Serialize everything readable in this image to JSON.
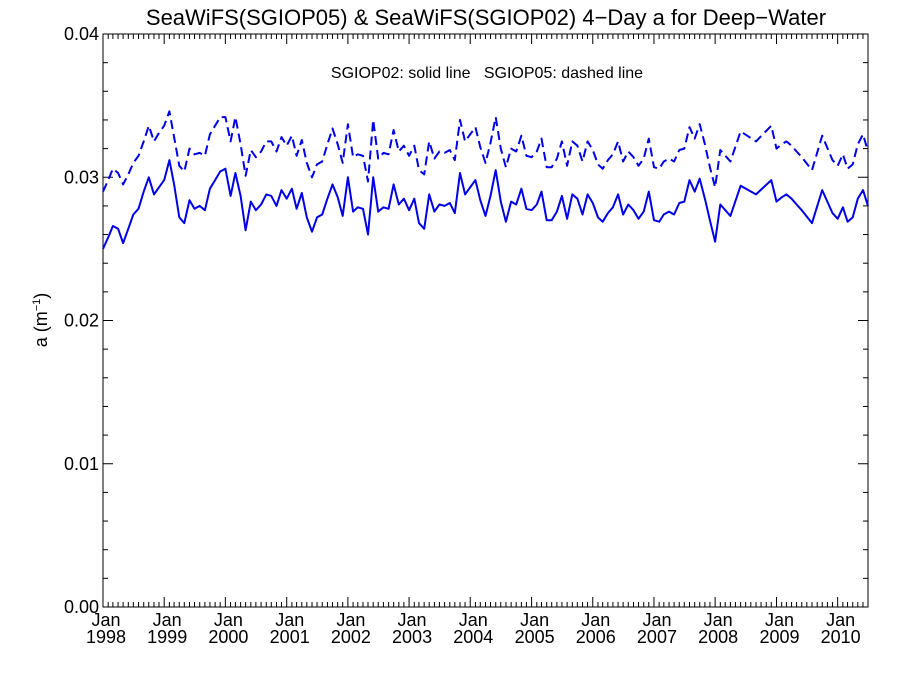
{
  "chart_data": {
    "type": "line",
    "title": "SeaWiFS(SGIOP05) & SeaWiFS(SGIOP02) 4−Day a for Deep−Water",
    "ylabel_main": "a (m",
    "ylabel_sup": "−1",
    "ylabel_tail": ")",
    "xlabel": "",
    "annotation": "SGIOP02: solid line   SGIOP05: dashed line",
    "ylim": [
      0.0,
      0.04
    ],
    "xlim": [
      "1998-01-01",
      "2010-07-01"
    ],
    "y_ticks": [
      {
        "value": 0.0,
        "label": "0.00"
      },
      {
        "value": 0.01,
        "label": "0.01"
      },
      {
        "value": 0.02,
        "label": "0.02"
      },
      {
        "value": 0.03,
        "label": "0.03"
      },
      {
        "value": 0.04,
        "label": "0.04"
      }
    ],
    "x_ticks": [
      {
        "date": "1998-01-01",
        "month": "Jan",
        "year": "1998"
      },
      {
        "date": "1999-01-01",
        "month": "Jan",
        "year": "1999"
      },
      {
        "date": "2000-01-01",
        "month": "Jan",
        "year": "2000"
      },
      {
        "date": "2001-01-01",
        "month": "Jan",
        "year": "2001"
      },
      {
        "date": "2002-01-01",
        "month": "Jan",
        "year": "2002"
      },
      {
        "date": "2003-01-01",
        "month": "Jan",
        "year": "2003"
      },
      {
        "date": "2004-01-01",
        "month": "Jan",
        "year": "2004"
      },
      {
        "date": "2005-01-01",
        "month": "Jan",
        "year": "2005"
      },
      {
        "date": "2006-01-01",
        "month": "Jan",
        "year": "2006"
      },
      {
        "date": "2007-01-01",
        "month": "Jan",
        "year": "2007"
      },
      {
        "date": "2008-01-01",
        "month": "Jan",
        "year": "2008"
      },
      {
        "date": "2009-01-01",
        "month": "Jan",
        "year": "2009"
      },
      {
        "date": "2010-01-01",
        "month": "Jan",
        "year": "2010"
      }
    ],
    "grid": false,
    "line_color": "#0000e6",
    "series": [
      {
        "style": "solid",
        "x": [
          "1998-01-01",
          "1998-02-01",
          "1998-03-01",
          "1998-04-01",
          "1998-05-01",
          "1998-06-01",
          "1998-07-01",
          "1998-08-01",
          "1998-09-01",
          "1998-10-01",
          "1998-11-01",
          "1998-12-01",
          "1999-01-01",
          "1999-02-01",
          "1999-03-01",
          "1999-04-01",
          "1999-05-01",
          "1999-06-01",
          "1999-07-01",
          "1999-08-01",
          "1999-09-01",
          "1999-10-01",
          "1999-11-01",
          "1999-12-01",
          "2000-01-01",
          "2000-02-01",
          "2000-03-01",
          "2000-04-01",
          "2000-05-01",
          "2000-06-01",
          "2000-07-01",
          "2000-08-01",
          "2000-09-01",
          "2000-10-01",
          "2000-11-01",
          "2000-12-01",
          "2001-01-01",
          "2001-02-01",
          "2001-03-01",
          "2001-04-01",
          "2001-05-01",
          "2001-06-01",
          "2001-07-01",
          "2001-08-01",
          "2001-09-01",
          "2001-10-01",
          "2001-11-01",
          "2001-12-01",
          "2002-01-01",
          "2002-02-01",
          "2002-03-01",
          "2002-04-01",
          "2002-05-01",
          "2002-06-01",
          "2002-07-01",
          "2002-08-01",
          "2002-09-01",
          "2002-10-01",
          "2002-11-01",
          "2002-12-01",
          "2003-01-01",
          "2003-02-01",
          "2003-03-01",
          "2003-04-01",
          "2003-05-01",
          "2003-06-01",
          "2003-07-01",
          "2003-08-01",
          "2003-09-01",
          "2003-10-01",
          "2003-11-01",
          "2003-12-01",
          "2004-01-01",
          "2004-02-01",
          "2004-03-01",
          "2004-04-01",
          "2004-05-01",
          "2004-06-01",
          "2004-07-01",
          "2004-08-01",
          "2004-09-01",
          "2004-10-01",
          "2004-11-01",
          "2004-12-01",
          "2005-01-01",
          "2005-02-01",
          "2005-03-01",
          "2005-04-01",
          "2005-05-01",
          "2005-06-01",
          "2005-07-01",
          "2005-08-01",
          "2005-09-01",
          "2005-10-01",
          "2005-11-01",
          "2005-12-01",
          "2006-01-01",
          "2006-02-01",
          "2006-03-01",
          "2006-04-01",
          "2006-05-01",
          "2006-06-01",
          "2006-07-01",
          "2006-08-01",
          "2006-09-01",
          "2006-10-01",
          "2006-11-01",
          "2006-12-01",
          "2007-01-01",
          "2007-02-01",
          "2007-03-01",
          "2007-04-01",
          "2007-05-01",
          "2007-06-01",
          "2007-07-01",
          "2007-08-01",
          "2007-09-01",
          "2007-10-01",
          "2007-11-01",
          "2007-12-01",
          "2008-01-01",
          "2008-02-01",
          "2008-04-01",
          "2008-06-01",
          "2008-09-01",
          "2008-12-01",
          "2009-01-01",
          "2009-02-01",
          "2009-03-01",
          "2009-04-01",
          "2009-05-01",
          "2009-06-01",
          "2009-08-01",
          "2009-10-01",
          "2009-12-01",
          "2010-01-01",
          "2010-02-01",
          "2010-03-01",
          "2010-04-01",
          "2010-05-01",
          "2010-06-01",
          "2010-07-01"
        ],
        "y": [
          0.025,
          0.0258,
          0.0266,
          0.0264,
          0.0254,
          0.0264,
          0.0274,
          0.0278,
          0.029,
          0.03,
          0.0288,
          0.0293,
          0.0298,
          0.0312,
          0.0295,
          0.0272,
          0.0268,
          0.0284,
          0.0278,
          0.028,
          0.0277,
          0.0292,
          0.0298,
          0.0304,
          0.0306,
          0.0287,
          0.0303,
          0.0287,
          0.0263,
          0.0283,
          0.0277,
          0.0281,
          0.0288,
          0.0287,
          0.028,
          0.0291,
          0.0285,
          0.0292,
          0.0278,
          0.0289,
          0.0272,
          0.0262,
          0.0272,
          0.0274,
          0.0285,
          0.0295,
          0.0286,
          0.0273,
          0.03,
          0.0276,
          0.0279,
          0.0278,
          0.026,
          0.03,
          0.0276,
          0.0279,
          0.0278,
          0.0295,
          0.0281,
          0.0285,
          0.0277,
          0.0285,
          0.0268,
          0.0264,
          0.0288,
          0.0276,
          0.0281,
          0.028,
          0.0282,
          0.0275,
          0.0303,
          0.0288,
          0.0293,
          0.0298,
          0.0284,
          0.0273,
          0.0287,
          0.0305,
          0.0283,
          0.0269,
          0.0283,
          0.0281,
          0.0292,
          0.0278,
          0.0277,
          0.0281,
          0.029,
          0.027,
          0.027,
          0.0276,
          0.0287,
          0.0271,
          0.0288,
          0.0285,
          0.0274,
          0.0288,
          0.0282,
          0.0272,
          0.0269,
          0.0275,
          0.0279,
          0.0288,
          0.0274,
          0.0281,
          0.0277,
          0.0271,
          0.0276,
          0.029,
          0.027,
          0.0269,
          0.0274,
          0.0276,
          0.0274,
          0.0282,
          0.0283,
          0.0298,
          0.029,
          0.0299,
          0.0285,
          0.027,
          0.0255,
          0.0281,
          0.0273,
          0.0294,
          0.0288,
          0.0298,
          0.0283,
          0.0286,
          0.0288,
          0.0285,
          0.0281,
          0.0277,
          0.0268,
          0.0291,
          0.0275,
          0.0271,
          0.0279,
          0.0269,
          0.0272,
          0.0285,
          0.0291,
          0.028
        ]
      },
      {
        "style": "dashed",
        "x": [
          "1998-01-01",
          "1998-02-01",
          "1998-03-01",
          "1998-04-01",
          "1998-05-01",
          "1998-06-01",
          "1998-07-01",
          "1998-08-01",
          "1998-09-01",
          "1998-10-01",
          "1998-11-01",
          "1998-12-01",
          "1999-01-01",
          "1999-02-01",
          "1999-03-01",
          "1999-04-01",
          "1999-05-01",
          "1999-06-01",
          "1999-07-01",
          "1999-08-01",
          "1999-09-01",
          "1999-10-01",
          "1999-11-01",
          "1999-12-01",
          "2000-01-01",
          "2000-02-01",
          "2000-03-01",
          "2000-04-01",
          "2000-05-01",
          "2000-06-01",
          "2000-07-01",
          "2000-08-01",
          "2000-09-01",
          "2000-10-01",
          "2000-11-01",
          "2000-12-01",
          "2001-01-01",
          "2001-02-01",
          "2001-03-01",
          "2001-04-01",
          "2001-05-01",
          "2001-06-01",
          "2001-07-01",
          "2001-08-01",
          "2001-09-01",
          "2001-10-01",
          "2001-11-01",
          "2001-12-01",
          "2002-01-01",
          "2002-02-01",
          "2002-03-01",
          "2002-04-01",
          "2002-05-01",
          "2002-06-01",
          "2002-07-01",
          "2002-08-01",
          "2002-09-01",
          "2002-10-01",
          "2002-11-01",
          "2002-12-01",
          "2003-01-01",
          "2003-02-01",
          "2003-03-01",
          "2003-04-01",
          "2003-05-01",
          "2003-06-01",
          "2003-07-01",
          "2003-08-01",
          "2003-09-01",
          "2003-10-01",
          "2003-11-01",
          "2003-12-01",
          "2004-01-01",
          "2004-02-01",
          "2004-03-01",
          "2004-04-01",
          "2004-05-01",
          "2004-06-01",
          "2004-07-01",
          "2004-08-01",
          "2004-09-01",
          "2004-10-01",
          "2004-11-01",
          "2004-12-01",
          "2005-01-01",
          "2005-02-01",
          "2005-03-01",
          "2005-04-01",
          "2005-05-01",
          "2005-06-01",
          "2005-07-01",
          "2005-08-01",
          "2005-09-01",
          "2005-10-01",
          "2005-11-01",
          "2005-12-01",
          "2006-01-01",
          "2006-02-01",
          "2006-03-01",
          "2006-04-01",
          "2006-05-01",
          "2006-06-01",
          "2006-07-01",
          "2006-08-01",
          "2006-09-01",
          "2006-10-01",
          "2006-11-01",
          "2006-12-01",
          "2007-01-01",
          "2007-02-01",
          "2007-03-01",
          "2007-04-01",
          "2007-05-01",
          "2007-06-01",
          "2007-07-01",
          "2007-08-01",
          "2007-09-01",
          "2007-10-01",
          "2007-11-01",
          "2007-12-01",
          "2008-01-01",
          "2008-02-01",
          "2008-04-01",
          "2008-06-01",
          "2008-09-01",
          "2008-12-01",
          "2009-01-01",
          "2009-02-01",
          "2009-03-01",
          "2009-04-01",
          "2009-05-01",
          "2009-06-01",
          "2009-08-01",
          "2009-10-01",
          "2009-12-01",
          "2010-01-01",
          "2010-02-01",
          "2010-03-01",
          "2010-04-01",
          "2010-05-01",
          "2010-06-01",
          "2010-07-01"
        ],
        "y": [
          0.029,
          0.0298,
          0.0306,
          0.0303,
          0.0295,
          0.0302,
          0.031,
          0.0315,
          0.0325,
          0.0336,
          0.0325,
          0.0331,
          0.0336,
          0.0346,
          0.0328,
          0.0308,
          0.0304,
          0.032,
          0.0316,
          0.0317,
          0.0315,
          0.033,
          0.0336,
          0.0342,
          0.0342,
          0.0325,
          0.0342,
          0.0323,
          0.0301,
          0.0319,
          0.0314,
          0.0318,
          0.0325,
          0.0325,
          0.0318,
          0.0328,
          0.0322,
          0.0329,
          0.0315,
          0.0326,
          0.031,
          0.03,
          0.0309,
          0.0311,
          0.0323,
          0.0334,
          0.0323,
          0.031,
          0.0337,
          0.0314,
          0.0316,
          0.0315,
          0.0297,
          0.034,
          0.0313,
          0.0317,
          0.0316,
          0.0333,
          0.0318,
          0.0322,
          0.0315,
          0.0322,
          0.0305,
          0.0302,
          0.0325,
          0.0313,
          0.0318,
          0.0317,
          0.0319,
          0.0312,
          0.034,
          0.0325,
          0.033,
          0.0335,
          0.0321,
          0.031,
          0.0324,
          0.0342,
          0.032,
          0.0307,
          0.032,
          0.0318,
          0.0329,
          0.0315,
          0.0314,
          0.0318,
          0.0327,
          0.0307,
          0.0307,
          0.0313,
          0.0325,
          0.0308,
          0.0325,
          0.0322,
          0.0311,
          0.0325,
          0.0319,
          0.0309,
          0.0306,
          0.0312,
          0.0316,
          0.0325,
          0.0311,
          0.0318,
          0.0314,
          0.0308,
          0.0313,
          0.0327,
          0.0307,
          0.0306,
          0.0311,
          0.0313,
          0.0311,
          0.0319,
          0.032,
          0.0335,
          0.0327,
          0.0337,
          0.0323,
          0.0307,
          0.0293,
          0.0319,
          0.0311,
          0.0332,
          0.0325,
          0.0336,
          0.032,
          0.0323,
          0.0325,
          0.0322,
          0.0318,
          0.0314,
          0.0305,
          0.0329,
          0.0312,
          0.0308,
          0.0316,
          0.0306,
          0.0309,
          0.0323,
          0.033,
          0.0318
        ]
      }
    ]
  }
}
